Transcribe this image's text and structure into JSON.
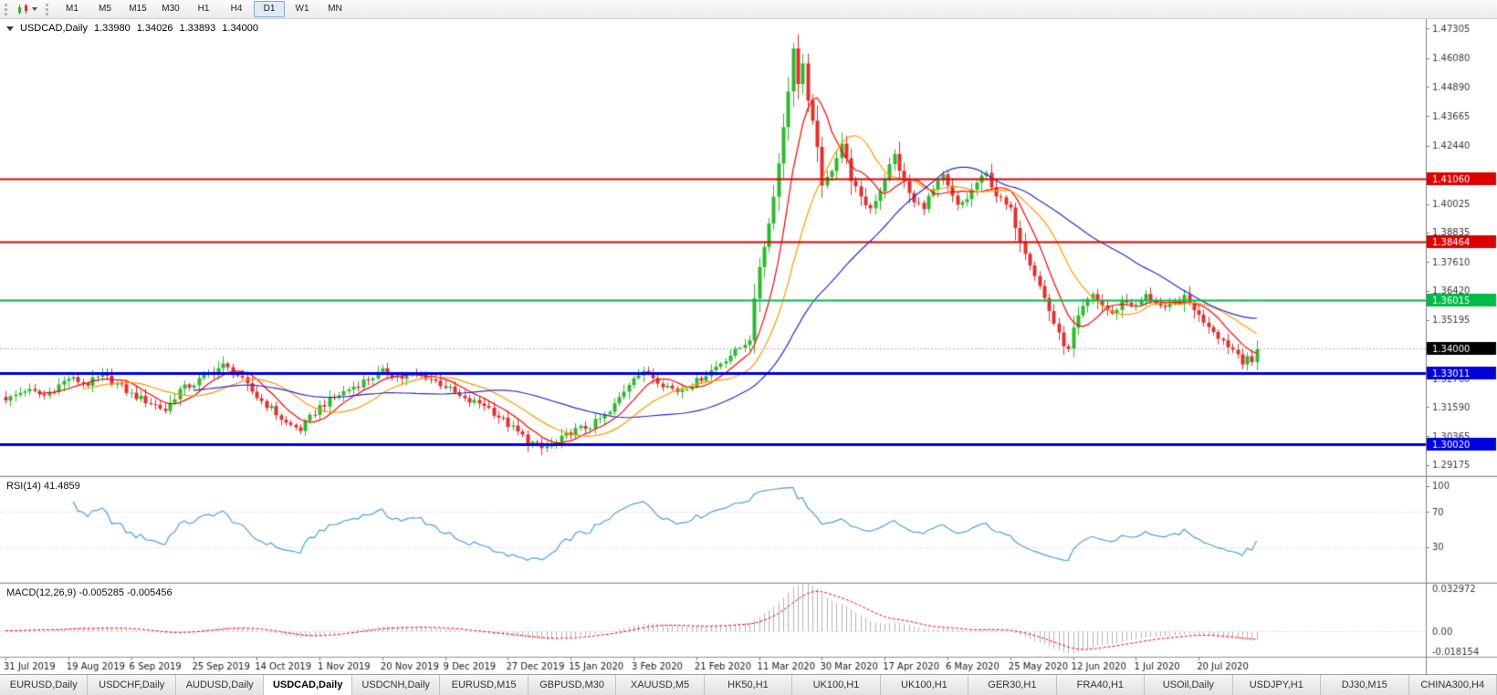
{
  "colors": {
    "up": "#2eb82e",
    "down": "#e03030",
    "ma_fast": "#ff0000",
    "ma_mid": "#ff9900",
    "ma_slow": "#2b2bd5",
    "rsi_line": "#4f9fd8",
    "macd_hist": "#b4b4b4",
    "macd_signal": "#ff0000"
  },
  "toolbar": {
    "timeframes": [
      "M1",
      "M5",
      "M15",
      "M30",
      "H1",
      "H4",
      "D1",
      "W1",
      "MN"
    ],
    "active_timeframe": "D1"
  },
  "chart": {
    "title_symbol": "USDCAD,Daily",
    "ohlc": {
      "open": "1.33980",
      "high": "1.34026",
      "low": "1.33893",
      "close": "1.34000"
    }
  },
  "chart_data": {
    "type": "candlestick",
    "symbol": "USDCAD",
    "timeframe": "Daily",
    "bars": 260,
    "date_ticks": {
      "interval": 13,
      "labels": [
        "31 Jul 2019",
        "19 Aug 2019",
        "6 Sep 2019",
        "25 Sep 2019",
        "14 Oct 2019",
        "1 Nov 2019",
        "20 Nov 2019",
        "9 Dec 2019",
        "27 Dec 2019",
        "15 Jan 2020",
        "3 Feb 2020",
        "21 Feb 2020",
        "11 Mar 2020",
        "30 Mar 2020",
        "17 Apr 2020",
        "6 May 2020",
        "25 May 2020",
        "12 Jun 2020",
        "1 Jul 2020",
        "20 Jul 2020"
      ]
    },
    "price_axis": {
      "min": 1.2875,
      "max": 1.477,
      "ticks": [
        "1.47305",
        "1.46080",
        "1.44890",
        "1.43665",
        "1.42440",
        "1.40025",
        "1.38835",
        "1.37610",
        "1.36420",
        "1.35195",
        "1.32760",
        "1.31590",
        "1.30365",
        "1.29175"
      ]
    },
    "close_anchors": [
      [
        0,
        1.3185
      ],
      [
        4,
        1.323
      ],
      [
        8,
        1.3205
      ],
      [
        13,
        1.3278
      ],
      [
        17,
        1.3255
      ],
      [
        20,
        1.329
      ],
      [
        24,
        1.324
      ],
      [
        26,
        1.321
      ],
      [
        30,
        1.3175
      ],
      [
        33,
        1.3145
      ],
      [
        36,
        1.323
      ],
      [
        39,
        1.3255
      ],
      [
        42,
        1.33
      ],
      [
        45,
        1.333
      ],
      [
        48,
        1.329
      ],
      [
        52,
        1.32
      ],
      [
        55,
        1.315
      ],
      [
        58,
        1.309
      ],
      [
        61,
        1.3065
      ],
      [
        65,
        1.316
      ],
      [
        69,
        1.321
      ],
      [
        73,
        1.3255
      ],
      [
        78,
        1.3305
      ],
      [
        82,
        1.328
      ],
      [
        86,
        1.3295
      ],
      [
        91,
        1.3245
      ],
      [
        95,
        1.3185
      ],
      [
        99,
        1.317
      ],
      [
        104,
        1.3085
      ],
      [
        108,
        1.302
      ],
      [
        111,
        1.2985
      ],
      [
        114,
        1.301
      ],
      [
        117,
        1.3055
      ],
      [
        121,
        1.308
      ],
      [
        125,
        1.3135
      ],
      [
        130,
        1.329
      ],
      [
        133,
        1.33
      ],
      [
        136,
        1.3255
      ],
      [
        139,
        1.3225
      ],
      [
        143,
        1.3265
      ],
      [
        146,
        1.331
      ],
      [
        149,
        1.336
      ],
      [
        152,
        1.3405
      ],
      [
        154,
        1.3445
      ],
      [
        156,
        1.3745
      ],
      [
        158,
        1.392
      ],
      [
        160,
        1.417
      ],
      [
        162,
        1.448
      ],
      [
        163,
        1.464
      ],
      [
        164,
        1.451
      ],
      [
        165,
        1.4585
      ],
      [
        166,
        1.442
      ],
      [
        168,
        1.425
      ],
      [
        169,
        1.4065
      ],
      [
        171,
        1.415
      ],
      [
        173,
        1.4255
      ],
      [
        175,
        1.411
      ],
      [
        177,
        1.402
      ],
      [
        179,
        1.3985
      ],
      [
        181,
        1.406
      ],
      [
        183,
        1.416
      ],
      [
        184,
        1.4205
      ],
      [
        186,
        1.409
      ],
      [
        188,
        1.4005
      ],
      [
        190,
        1.3995
      ],
      [
        192,
        1.406
      ],
      [
        194,
        1.4115
      ],
      [
        195,
        1.407
      ],
      [
        197,
        1.399
      ],
      [
        199,
        1.4025
      ],
      [
        201,
        1.409
      ],
      [
        203,
        1.4125
      ],
      [
        205,
        1.404
      ],
      [
        207,
        1.3995
      ],
      [
        208,
        1.3975
      ],
      [
        210,
        1.3855
      ],
      [
        212,
        1.376
      ],
      [
        214,
        1.366
      ],
      [
        216,
        1.356
      ],
      [
        218,
        1.3455
      ],
      [
        220,
        1.339
      ],
      [
        221,
        1.348
      ],
      [
        223,
        1.357
      ],
      [
        225,
        1.3625
      ],
      [
        227,
        1.358
      ],
      [
        229,
        1.354
      ],
      [
        231,
        1.36
      ],
      [
        233,
        1.359
      ],
      [
        234,
        1.3575
      ],
      [
        236,
        1.362
      ],
      [
        238,
        1.3595
      ],
      [
        240,
        1.356
      ],
      [
        242,
        1.359
      ],
      [
        244,
        1.361
      ],
      [
        246,
        1.357
      ],
      [
        247,
        1.3535
      ],
      [
        249,
        1.35
      ],
      [
        251,
        1.3455
      ],
      [
        253,
        1.3415
      ],
      [
        255,
        1.338
      ],
      [
        256,
        1.335
      ],
      [
        257,
        1.337
      ],
      [
        258,
        1.3345
      ],
      [
        259,
        1.34
      ]
    ],
    "levels": [
      {
        "price": "1.41060",
        "color": "#dd0000",
        "width": 2
      },
      {
        "price": "1.38464",
        "color": "#dd0000",
        "width": 2
      },
      {
        "price": "1.36015",
        "color": "#00bb44",
        "width": 2
      },
      {
        "price": "1.33011",
        "color": "#0000dd",
        "width": 3
      },
      {
        "price": "1.30020",
        "color": "#0000dd",
        "width": 3
      }
    ],
    "current_price": "1.34000",
    "moving_averages": [
      {
        "period": 8,
        "color_key": "ma_fast"
      },
      {
        "period": 17,
        "color_key": "ma_mid"
      },
      {
        "period": 40,
        "color_key": "ma_slow"
      }
    ],
    "rsi": {
      "label": "RSI(14) 41.4859",
      "period": 14,
      "levels": [
        70,
        30
      ],
      "axis_labels": [
        "100",
        "70",
        "30"
      ]
    },
    "macd": {
      "label": "MACD(12,26,9) -0.005285 -0.005456",
      "fast": 12,
      "slow": 26,
      "signal": 9,
      "axis_max": 0.032972,
      "axis_min": -0.018154,
      "axis_labels": [
        "0.032972",
        "0.00",
        "-0.018154"
      ]
    }
  },
  "tabs": [
    {
      "label": "EURUSD,Daily"
    },
    {
      "label": "USDCHF,Daily"
    },
    {
      "label": "AUDUSD,Daily"
    },
    {
      "label": "USDCAD,Daily",
      "active": true
    },
    {
      "label": "USDCNH,Daily"
    },
    {
      "label": "EURUSD,M15"
    },
    {
      "label": "GBPUSD,M30"
    },
    {
      "label": "XAUUSD,M5"
    },
    {
      "label": "HK50,H1"
    },
    {
      "label": "UK100,H1"
    },
    {
      "label": "UK100,H1"
    },
    {
      "label": "GER30,H1"
    },
    {
      "label": "FRA40,H1"
    },
    {
      "label": "USOil,Daily"
    },
    {
      "label": "USDJPY,H1"
    },
    {
      "label": "DJ30,M15"
    },
    {
      "label": "CHINA300,H4"
    }
  ]
}
